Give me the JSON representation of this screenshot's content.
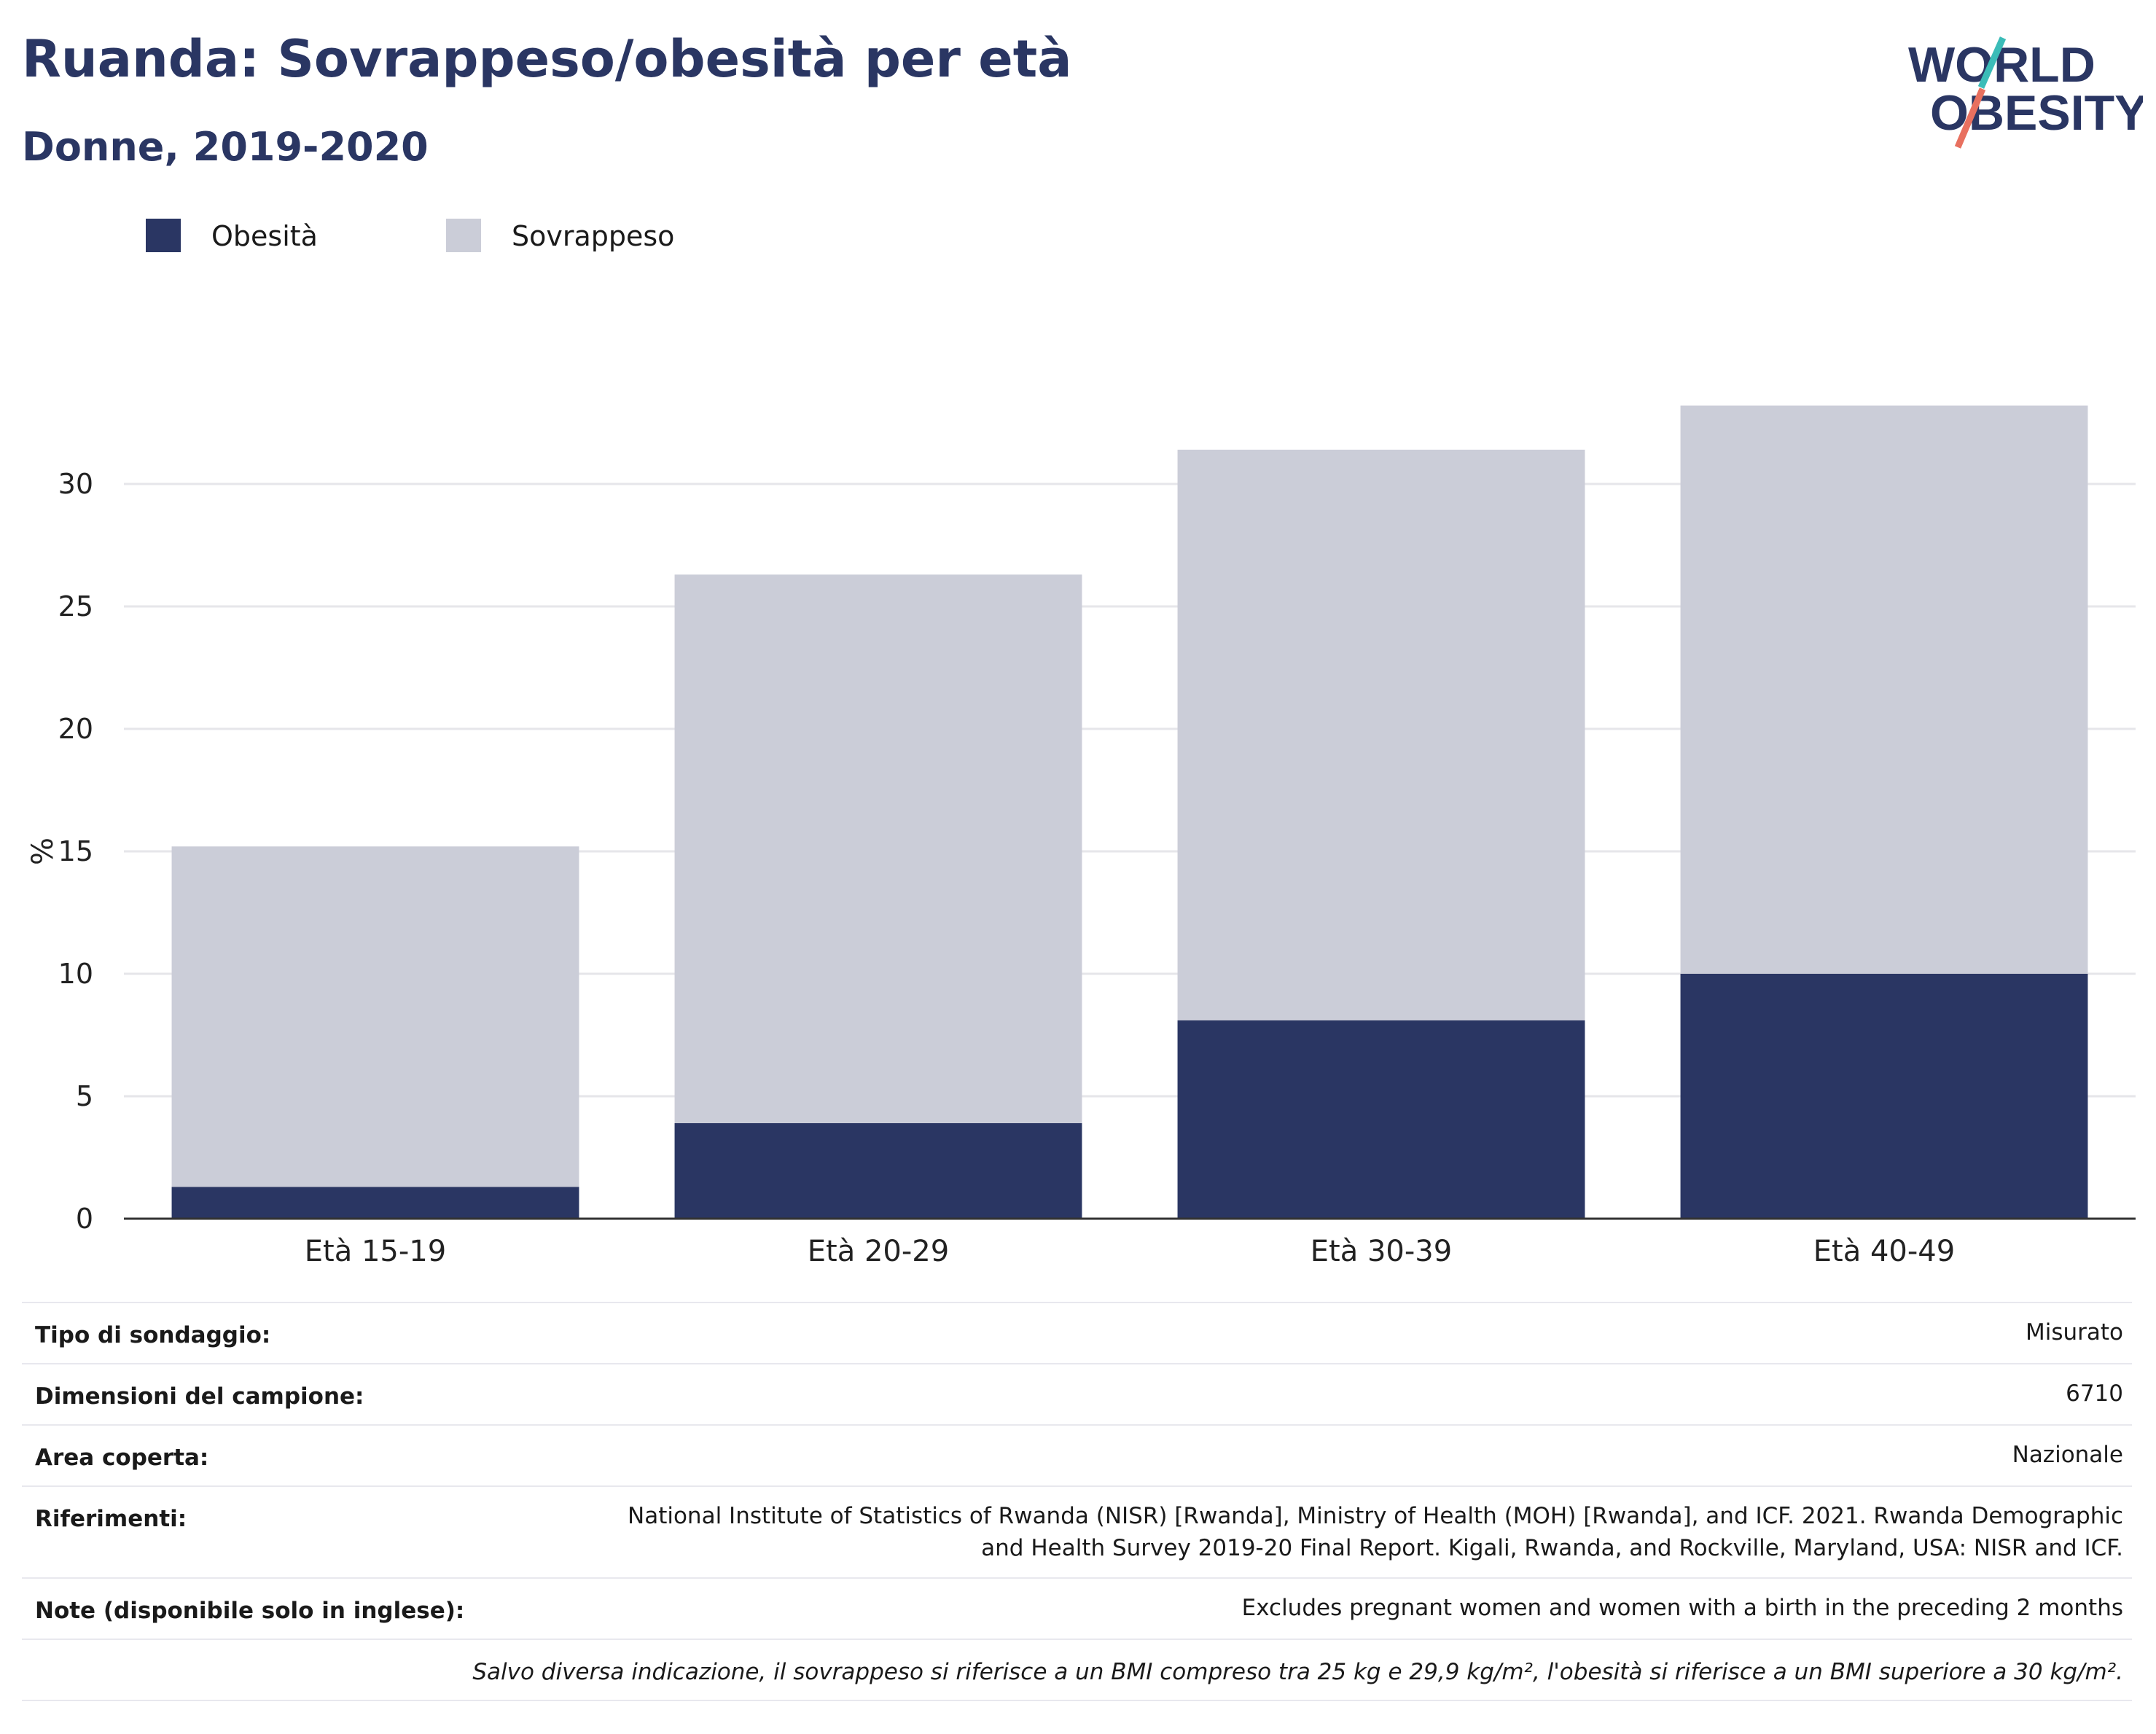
{
  "header": {
    "title": "Ruanda: Sovrappeso/obesità per età",
    "subtitle": "Donne, 2019-2020"
  },
  "logo": {
    "line1": "WORLD",
    "line2": "OBESITY"
  },
  "colors": {
    "obesity": "#2a3663",
    "overweight": "#cbcdd8",
    "title": "#2a3663",
    "grid": "#e6e6ea",
    "logo_teal": "#3bbcb8",
    "logo_red": "#e8705f"
  },
  "legend": [
    {
      "label": "Obesità",
      "color": "#2a3663"
    },
    {
      "label": "Sovrappeso",
      "color": "#cbcdd8"
    }
  ],
  "chart_data": {
    "type": "bar",
    "stacked": true,
    "categories": [
      "Età 15-19",
      "Età 20-29",
      "Età 30-39",
      "Età 40-49"
    ],
    "series": [
      {
        "name": "Obesità",
        "values": [
          1.3,
          3.9,
          8.1,
          10.0
        ]
      },
      {
        "name": "Sovrappeso",
        "values": [
          13.9,
          22.4,
          23.3,
          23.2
        ]
      }
    ],
    "totals": [
      15.2,
      26.3,
      31.4,
      33.2
    ],
    "ylabel": "%",
    "xlabel": "",
    "yticks": [
      0,
      5,
      10,
      15,
      20,
      25,
      30
    ],
    "ylim": [
      0,
      33.2
    ],
    "grid": true,
    "legend_position": "top-left"
  },
  "info": {
    "rows": [
      {
        "label": "Tipo di sondaggio:",
        "value": "Misurato"
      },
      {
        "label": "Dimensioni del campione:",
        "value": "6710"
      },
      {
        "label": "Area coperta:",
        "value": "Nazionale"
      },
      {
        "label": "Riferimenti:",
        "value_lines": [
          "National Institute of Statistics of Rwanda (NISR) [Rwanda], Ministry of Health (MOH) [Rwanda], and ICF. 2021. Rwanda Demographic",
          "and Health Survey 2019-20 Final Report. Kigali, Rwanda, and Rockville, Maryland, USA: NISR and ICF."
        ]
      },
      {
        "label": "Note (disponibile solo in inglese):",
        "value": "Excludes pregnant women and women with a birth in the preceding 2 months"
      }
    ],
    "footnote": "Salvo diversa indicazione, il sovrappeso si riferisce a un BMI compreso tra 25 kg e 29,9 kg/m², l'obesità si riferisce a un BMI superiore a 30 kg/m²."
  }
}
